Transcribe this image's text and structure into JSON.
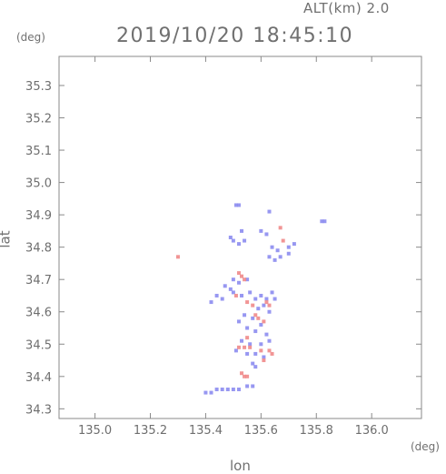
{
  "header": {
    "altitude_label": "ALT(km) 2.0",
    "timestamp": "2019/10/20 18:45:10"
  },
  "chart_data": {
    "type": "scatter",
    "title": "2019/10/20 18:45:10",
    "xlabel": "lon",
    "ylabel": "lat",
    "x_unit": "(deg)",
    "y_unit": "(deg)",
    "xlim": [
      134.87,
      136.18
    ],
    "ylim": [
      34.27,
      35.39
    ],
    "x_ticks": [
      135.0,
      135.2,
      135.4,
      135.6,
      135.8,
      136.0
    ],
    "x_tick_labels": [
      "135.0",
      "135.2",
      "135.4",
      "135.6",
      "135.8",
      "136.0"
    ],
    "y_ticks": [
      34.3,
      34.4,
      34.5,
      34.6,
      34.7,
      34.8,
      34.9,
      35.0,
      35.1,
      35.2,
      35.3
    ],
    "y_tick_labels": [
      "34.3",
      "34.4",
      "34.5",
      "34.6",
      "34.7",
      "34.8",
      "34.9",
      "35.0",
      "35.1",
      "35.2",
      "35.3"
    ],
    "grid": false,
    "colors": {
      "positive": "#f08a8a",
      "negative": "#8c8cf0",
      "axis": "#8a8a8a"
    },
    "series": [
      {
        "name": "",
        "color": "#8c8cf0",
        "points": [
          [
            135.51,
            34.93
          ],
          [
            135.52,
            34.93
          ],
          [
            135.63,
            34.91
          ],
          [
            135.82,
            34.88
          ],
          [
            135.83,
            34.88
          ],
          [
            135.53,
            34.85
          ],
          [
            135.49,
            34.83
          ],
          [
            135.5,
            34.82
          ],
          [
            135.52,
            34.81
          ],
          [
            135.54,
            34.82
          ],
          [
            135.6,
            34.85
          ],
          [
            135.62,
            34.84
          ],
          [
            135.64,
            34.8
          ],
          [
            135.66,
            34.79
          ],
          [
            135.7,
            34.8
          ],
          [
            135.72,
            34.81
          ],
          [
            135.63,
            34.77
          ],
          [
            135.65,
            34.76
          ],
          [
            135.67,
            34.77
          ],
          [
            135.7,
            34.78
          ],
          [
            135.5,
            34.7
          ],
          [
            135.52,
            34.69
          ],
          [
            135.55,
            34.7
          ],
          [
            135.47,
            34.68
          ],
          [
            135.49,
            34.67
          ],
          [
            135.44,
            34.65
          ],
          [
            135.46,
            34.64
          ],
          [
            135.42,
            34.63
          ],
          [
            135.5,
            34.66
          ],
          [
            135.53,
            34.65
          ],
          [
            135.56,
            34.66
          ],
          [
            135.58,
            34.64
          ],
          [
            135.6,
            34.65
          ],
          [
            135.62,
            34.64
          ],
          [
            135.64,
            34.66
          ],
          [
            135.65,
            34.64
          ],
          [
            135.59,
            34.61
          ],
          [
            135.61,
            34.62
          ],
          [
            135.63,
            34.6
          ],
          [
            135.57,
            34.58
          ],
          [
            135.54,
            34.59
          ],
          [
            135.52,
            34.57
          ],
          [
            135.55,
            34.55
          ],
          [
            135.58,
            34.54
          ],
          [
            135.6,
            34.56
          ],
          [
            135.62,
            34.53
          ],
          [
            135.53,
            34.51
          ],
          [
            135.56,
            34.5
          ],
          [
            135.6,
            34.5
          ],
          [
            135.63,
            34.51
          ],
          [
            135.51,
            34.48
          ],
          [
            135.55,
            34.47
          ],
          [
            135.58,
            34.47
          ],
          [
            135.61,
            34.46
          ],
          [
            135.57,
            34.44
          ],
          [
            135.58,
            34.43
          ],
          [
            135.4,
            34.35
          ],
          [
            135.42,
            34.35
          ],
          [
            135.44,
            34.36
          ],
          [
            135.46,
            34.36
          ],
          [
            135.48,
            34.36
          ],
          [
            135.5,
            34.36
          ],
          [
            135.52,
            34.36
          ],
          [
            135.55,
            34.37
          ],
          [
            135.57,
            34.37
          ]
        ]
      },
      {
        "name": "",
        "color": "#f08a8a",
        "points": [
          [
            135.3,
            34.77
          ],
          [
            135.67,
            34.86
          ],
          [
            135.68,
            34.82
          ],
          [
            135.52,
            34.72
          ],
          [
            135.53,
            34.71
          ],
          [
            135.54,
            34.7
          ],
          [
            135.51,
            34.65
          ],
          [
            135.55,
            34.63
          ],
          [
            135.57,
            34.62
          ],
          [
            135.62,
            34.63
          ],
          [
            135.63,
            34.62
          ],
          [
            135.58,
            34.59
          ],
          [
            135.59,
            34.58
          ],
          [
            135.61,
            34.57
          ],
          [
            135.55,
            34.52
          ],
          [
            135.52,
            34.49
          ],
          [
            135.54,
            34.49
          ],
          [
            135.56,
            34.49
          ],
          [
            135.6,
            34.48
          ],
          [
            135.63,
            34.48
          ],
          [
            135.64,
            34.47
          ],
          [
            135.61,
            34.45
          ],
          [
            135.53,
            34.41
          ],
          [
            135.54,
            34.4
          ],
          [
            135.55,
            34.4
          ]
        ]
      }
    ]
  }
}
